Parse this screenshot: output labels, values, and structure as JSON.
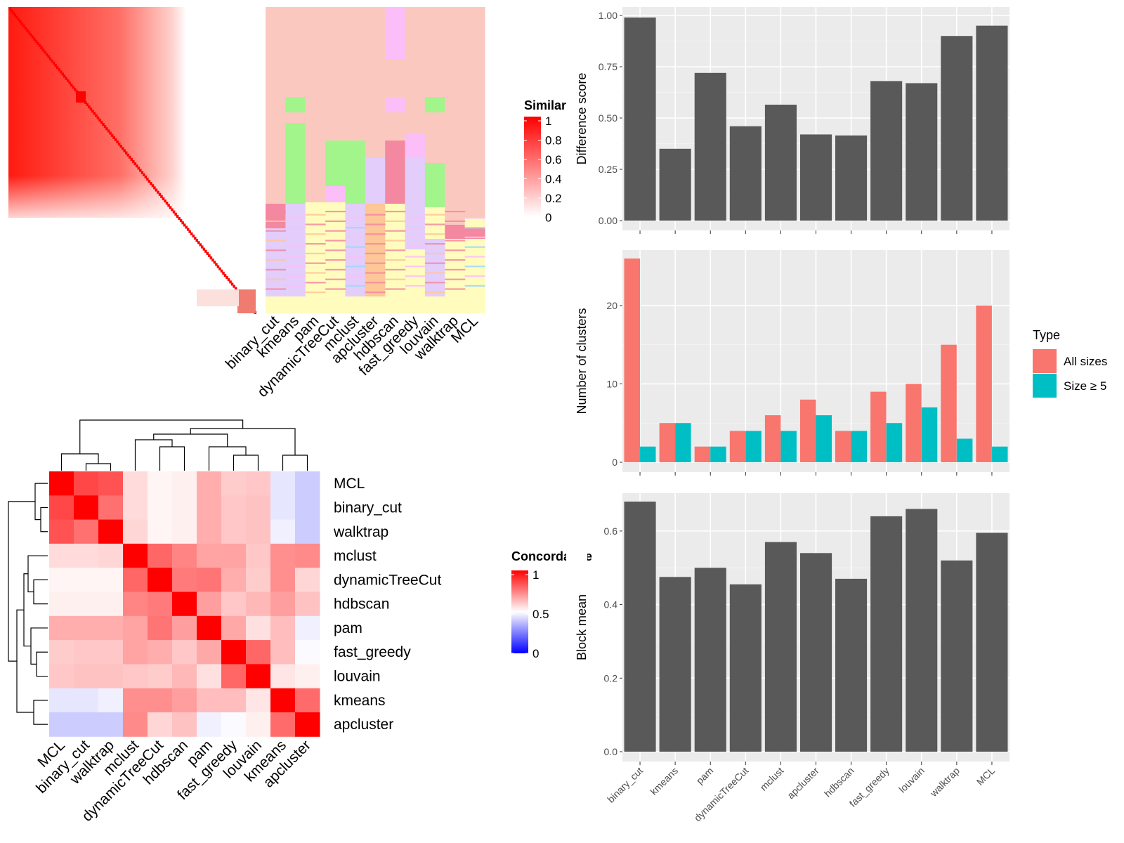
{
  "methods": [
    "binary_cut",
    "kmeans",
    "pam",
    "dynamicTreeCut",
    "mclust",
    "apcluster",
    "hdbscan",
    "fast_greedy",
    "louvain",
    "walktrap",
    "MCL"
  ],
  "chart_data": [
    {
      "type": "heatmap",
      "panel": "similarity-matrix",
      "legend_title": "Similarity",
      "legend_ticks": [
        "1",
        "0.8",
        "0.6",
        "0.4",
        "0.2",
        "0"
      ],
      "legend_colors": {
        "high": "#ff0000",
        "low": "#ffffff"
      },
      "annotation_columns": [
        "binary_cut",
        "kmeans",
        "pam",
        "dynamicTreeCut",
        "mclust",
        "apcluster",
        "hdbscan",
        "fast_greedy",
        "louvain",
        "walktrap",
        "MCL"
      ]
    },
    {
      "type": "heatmap",
      "panel": "concordance",
      "legend_title": "Concordance",
      "legend_ticks": [
        "1",
        "0.5",
        "0"
      ],
      "legend_colors": {
        "high": "#ff0000",
        "mid": "#ffffff",
        "low": "#0000ff"
      },
      "row_order": [
        "MCL",
        "binary_cut",
        "walktrap",
        "mclust",
        "dynamicTreeCut",
        "hdbscan",
        "pam",
        "fast_greedy",
        "louvain",
        "kmeans",
        "apcluster"
      ],
      "col_order": [
        "MCL",
        "binary_cut",
        "walktrap",
        "mclust",
        "dynamicTreeCut",
        "hdbscan",
        "pam",
        "fast_greedy",
        "louvain",
        "kmeans",
        "apcluster"
      ],
      "values": [
        [
          1.0,
          0.86,
          0.84,
          0.57,
          0.52,
          0.53,
          0.66,
          0.6,
          0.61,
          0.45,
          0.4
        ],
        [
          0.86,
          1.0,
          0.78,
          0.57,
          0.52,
          0.53,
          0.66,
          0.61,
          0.62,
          0.45,
          0.4
        ],
        [
          0.84,
          0.78,
          1.0,
          0.58,
          0.52,
          0.53,
          0.66,
          0.61,
          0.62,
          0.47,
          0.4
        ],
        [
          0.57,
          0.57,
          0.58,
          1.0,
          0.8,
          0.74,
          0.68,
          0.68,
          0.61,
          0.72,
          0.73
        ],
        [
          0.52,
          0.52,
          0.52,
          0.8,
          1.0,
          0.76,
          0.77,
          0.66,
          0.6,
          0.72,
          0.58
        ],
        [
          0.53,
          0.53,
          0.53,
          0.74,
          0.76,
          1.0,
          0.69,
          0.61,
          0.64,
          0.69,
          0.62
        ],
        [
          0.66,
          0.66,
          0.66,
          0.68,
          0.77,
          0.69,
          1.0,
          0.67,
          0.56,
          0.63,
          0.47
        ],
        [
          0.6,
          0.61,
          0.61,
          0.68,
          0.66,
          0.61,
          0.67,
          1.0,
          0.8,
          0.63,
          0.49
        ],
        [
          0.61,
          0.62,
          0.62,
          0.61,
          0.6,
          0.64,
          0.56,
          0.8,
          1.0,
          0.55,
          0.53
        ],
        [
          0.45,
          0.45,
          0.47,
          0.72,
          0.72,
          0.69,
          0.63,
          0.63,
          0.55,
          1.0,
          0.79
        ],
        [
          0.4,
          0.4,
          0.4,
          0.73,
          0.58,
          0.62,
          0.47,
          0.49,
          0.53,
          0.79,
          1.0
        ]
      ]
    },
    {
      "type": "bar",
      "panel": "difference-score",
      "categories": [
        "binary_cut",
        "kmeans",
        "pam",
        "dynamicTreeCut",
        "mclust",
        "apcluster",
        "hdbscan",
        "fast_greedy",
        "louvain",
        "walktrap",
        "MCL"
      ],
      "values": [
        0.99,
        0.35,
        0.72,
        0.46,
        0.565,
        0.42,
        0.415,
        0.68,
        0.67,
        0.9,
        0.95
      ],
      "ylabel": "Difference score",
      "ylim": [
        0,
        1.0
      ],
      "yticks": [
        "0.00",
        "0.25",
        "0.50",
        "0.75",
        "1.00"
      ],
      "color": "#595959"
    },
    {
      "type": "bar",
      "panel": "number-of-clusters",
      "categories": [
        "binary_cut",
        "kmeans",
        "pam",
        "dynamicTreeCut",
        "mclust",
        "apcluster",
        "hdbscan",
        "fast_greedy",
        "louvain",
        "walktrap",
        "MCL"
      ],
      "series": [
        {
          "name": "All sizes",
          "values": [
            26,
            5,
            2,
            4,
            6,
            8,
            4,
            9,
            10,
            15,
            20
          ],
          "color": "#f8766d"
        },
        {
          "name": "Size ≥ 5",
          "values": [
            2,
            5,
            2,
            4,
            4,
            6,
            4,
            5,
            7,
            3,
            2
          ],
          "color": "#00bfc4"
        }
      ],
      "ylabel": "Number of clusters",
      "ylim": [
        0,
        26
      ],
      "yticks": [
        "0",
        "10",
        "20"
      ],
      "legend_title": "Type",
      "legend_position": "right"
    },
    {
      "type": "bar",
      "panel": "block-mean",
      "categories": [
        "binary_cut",
        "kmeans",
        "pam",
        "dynamicTreeCut",
        "mclust",
        "apcluster",
        "hdbscan",
        "fast_greedy",
        "louvain",
        "walktrap",
        "MCL"
      ],
      "values": [
        0.68,
        0.475,
        0.5,
        0.455,
        0.57,
        0.54,
        0.47,
        0.64,
        0.66,
        0.52,
        0.595
      ],
      "ylabel": "Block mean",
      "ylim": [
        0,
        0.68
      ],
      "yticks": [
        "0.0",
        "0.2",
        "0.4",
        "0.6"
      ],
      "color": "#595959"
    }
  ]
}
